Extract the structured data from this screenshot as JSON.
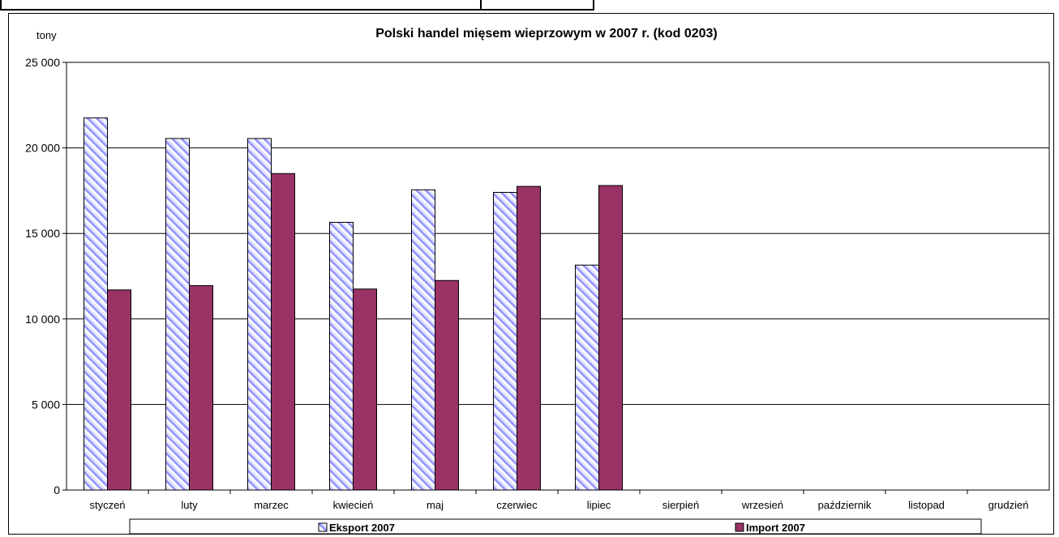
{
  "chart_data": {
    "type": "bar",
    "title": "Polski handel mięsem wieprzowym w 2007 r. (kod 0203)",
    "ylabel": "tony",
    "xlabel": "",
    "ylim": [
      0,
      25000
    ],
    "yticks": [
      0,
      5000,
      10000,
      15000,
      20000,
      25000
    ],
    "ytick_labels": [
      "0",
      "5 000",
      "10 000",
      "15 000",
      "20 000",
      "25 000"
    ],
    "categories": [
      "styczeń",
      "luty",
      "marzec",
      "kwiecień",
      "maj",
      "czerwiec",
      "lipiec",
      "sierpień",
      "wrzesień",
      "październik",
      "listopad",
      "grudzień"
    ],
    "series": [
      {
        "name": "Eksport 2007",
        "color": "#9999ff",
        "pattern": "diagonal-hatch",
        "values": [
          21750,
          20550,
          20550,
          15650,
          17550,
          17400,
          13150,
          null,
          null,
          null,
          null,
          null
        ]
      },
      {
        "name": "Import 2007",
        "color": "#993366",
        "pattern": "solid",
        "values": [
          11700,
          11950,
          18500,
          11750,
          12250,
          17750,
          17800,
          null,
          null,
          null,
          null,
          null
        ]
      }
    ],
    "grid": true,
    "legend_position": "bottom"
  }
}
